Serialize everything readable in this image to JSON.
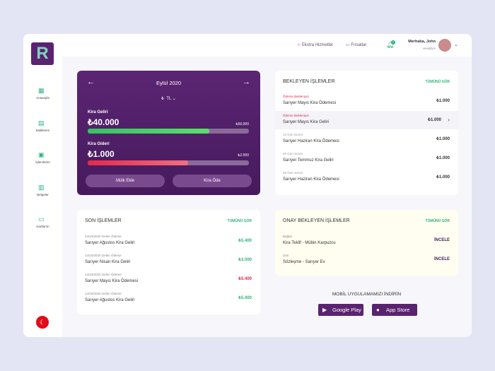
{
  "logo": "R",
  "header": {
    "nav": [
      "Ekstra Hizmetler",
      "Fırsatlar"
    ],
    "notifications": "2",
    "greeting": "Merhaba, John",
    "account": "Hesabım"
  },
  "sidebar": [
    "Anasayfa",
    "Mülklerim",
    "İşlemlerim",
    "Belgeler",
    "Kartlarım"
  ],
  "summary": {
    "month": "Eylül 2020",
    "currency_symbol": "₺",
    "currency": "TL",
    "income": {
      "label": "Kira Geliri",
      "amount": "₺40.000",
      "target": "₺50.000"
    },
    "expense": {
      "label": "Kira Gideri",
      "amount": "₺1.000",
      "target": "₺2.000"
    },
    "buttons": [
      "Mülk Ekle",
      "Kira Öde"
    ]
  },
  "pending": {
    "title": "BEKLEYEN İŞLEMLER",
    "link": "TÜMÜNÜ GÖR",
    "rows": [
      {
        "status": "Ödeme Bekleniyor",
        "title": "Sarıyer Mayıs Kira Ödemesi",
        "amount": "₺1.000"
      },
      {
        "status": "Ödeme Bekleniyor",
        "title": "Sarıyer Mayıs Kira Geliri",
        "amount": "₺1.000"
      },
      {
        "status": "14 Gün Sonra",
        "title": "Sarıyer Haziran Kira Ödemesi",
        "amount": "₺1.000"
      },
      {
        "status": "20 Gün Sonra",
        "title": "Sarıyer Temmuz Kira Geliri",
        "amount": "₺1.000"
      },
      {
        "status": "29 Gün Sonra",
        "title": "Sarıyer Haziran Kira Ödemesi",
        "amount": "₺1.000"
      }
    ]
  },
  "recent": {
    "title": "SON İŞLEMLER",
    "link": "TÜMÜNÜ GÖR",
    "rows": [
      {
        "date": "14/10/2020 Gelen Ödeme",
        "title": "Sarıyer Ağustos Kira Geliri",
        "amount": "₺5.400"
      },
      {
        "date": "14/10/2020 Gelen Ödeme",
        "title": "Sarıyer Nisan Kira Geliri",
        "amount": "₺3.000"
      },
      {
        "date": "14/10/2020 Giden Ödeme",
        "title": "Sarıyer Mayıs Kira Ödemesi",
        "amount": "₺5.400"
      },
      {
        "date": "14/10/2020 Gelen Ödeme",
        "title": "Sarıyer Ağustos Kira Geliri",
        "amount": "₺5.400"
      }
    ]
  },
  "approval": {
    "title": "ONAY BEKLEYEN İŞLEMLER",
    "link": "TÜMÜNÜ GÖR",
    "rows": [
      {
        "date": "Buğün",
        "title": "Kira Teklif - Mübin Karpuzcu",
        "action": "İNCELE"
      },
      {
        "date": "Gün",
        "title": "Sözleşme - Sarıyer Ev",
        "action": "İNCELE"
      }
    ]
  },
  "app": {
    "title": "MOBİL UYGULAMAMIZI İNDİRİN",
    "stores": [
      "Google Play",
      "App Store"
    ]
  }
}
